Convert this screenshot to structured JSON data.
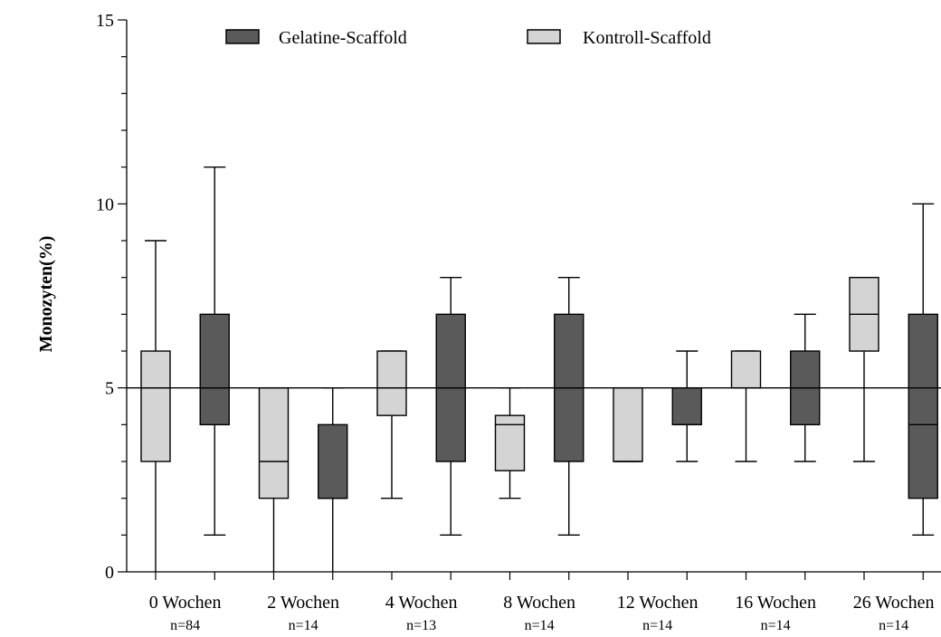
{
  "chart_data": {
    "type": "box",
    "title": "",
    "xlabel": "",
    "ylabel": "Monozyten(%)",
    "ylim": [
      0,
      15
    ],
    "yticks": [
      0,
      5,
      10,
      15
    ],
    "reference_line": 5,
    "grid": false,
    "legend_position": "top",
    "legend": [
      {
        "name": "Gelatine-Scaffold",
        "color": "#5a5a5a"
      },
      {
        "name": "Kontroll-Scaffold",
        "color": "#d4d4d4"
      }
    ],
    "categories": [
      {
        "label": "0 Wochen",
        "n": "n=84"
      },
      {
        "label": "2 Wochen",
        "n": "n=14"
      },
      {
        "label": "4 Wochen",
        "n": "n=13"
      },
      {
        "label": "8 Wochen",
        "n": "n=14"
      },
      {
        "label": "12 Wochen",
        "n": "n=14"
      },
      {
        "label": "16 Wochen",
        "n": "n=14"
      },
      {
        "label": "26 Wochen",
        "n": "n=14"
      }
    ],
    "series": [
      {
        "name": "Kontroll-Scaffold",
        "color": "#d4d4d4",
        "boxes": [
          {
            "min": 0,
            "q1": 3,
            "median": 5,
            "q3": 6,
            "max": 9
          },
          {
            "min": 0,
            "q1": 2,
            "median": 3,
            "q3": 5,
            "max": 5
          },
          {
            "min": 2,
            "q1": 4.25,
            "median": 5,
            "q3": 6,
            "max": 6
          },
          {
            "min": 2,
            "q1": 2.75,
            "median": 4,
            "q3": 4.25,
            "max": 5
          },
          {
            "min": 3,
            "q1": 3,
            "median": 3,
            "q3": 5,
            "max": 5
          },
          {
            "min": 3,
            "q1": 5,
            "median": 5,
            "q3": 6,
            "max": 6
          },
          {
            "min": 3,
            "q1": 6,
            "median": 7,
            "q3": 8,
            "max": 8
          }
        ]
      },
      {
        "name": "Gelatine-Scaffold",
        "color": "#5a5a5a",
        "boxes": [
          {
            "min": 1,
            "q1": 4,
            "median": 5,
            "q3": 7,
            "max": 11
          },
          {
            "min": 0,
            "q1": 2,
            "median": 2,
            "q3": 4,
            "max": 5
          },
          {
            "min": 1,
            "q1": 3,
            "median": 5,
            "q3": 7,
            "max": 8
          },
          {
            "min": 1,
            "q1": 3,
            "median": 5,
            "q3": 7,
            "max": 8
          },
          {
            "min": 3,
            "q1": 4,
            "median": 4,
            "q3": 5,
            "max": 6
          },
          {
            "min": 3,
            "q1": 4,
            "median": 5,
            "q3": 6,
            "max": 7
          },
          {
            "min": 1,
            "q1": 2,
            "median": 4,
            "q3": 7,
            "max": 10
          }
        ]
      }
    ]
  }
}
